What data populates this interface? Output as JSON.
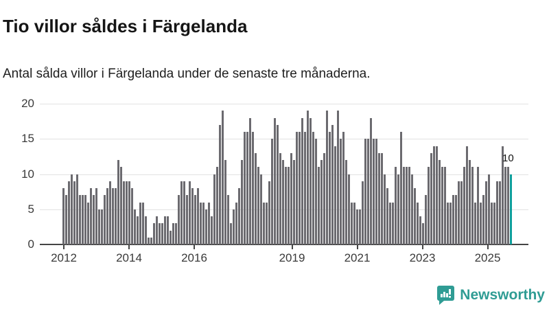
{
  "header": {
    "title": "Tio villor såldes i Färgelanda",
    "subtitle": "Antal sålda villor i Färgelanda under de senaste tre månaderna."
  },
  "chart_data": {
    "type": "bar",
    "title": "Tio villor såldes i Färgelanda",
    "subtitle": "Antal sålda villor i Färgelanda under de senaste tre månaderna.",
    "x_unit": "month",
    "x_start": "2012-01",
    "x_end": "2025-08",
    "values": [
      8,
      7,
      9,
      10,
      9,
      10,
      7,
      7,
      7,
      6,
      8,
      7,
      8,
      5,
      5,
      7,
      8,
      9,
      8,
      8,
      12,
      11,
      9,
      9,
      9,
      8,
      5,
      4,
      6,
      6,
      4,
      1,
      1,
      3,
      4,
      3,
      3,
      4,
      4,
      2,
      3,
      3,
      7,
      9,
      9,
      7,
      9,
      8,
      7,
      8,
      6,
      6,
      5,
      6,
      4,
      10,
      11,
      17,
      19,
      12,
      7,
      3,
      5,
      6,
      8,
      12,
      16,
      16,
      18,
      16,
      13,
      11,
      10,
      6,
      6,
      9,
      15,
      18,
      17,
      13,
      12,
      11,
      11,
      13,
      12,
      16,
      16,
      18,
      16,
      19,
      18,
      16,
      15,
      11,
      12,
      13,
      19,
      16,
      17,
      14,
      19,
      15,
      16,
      12,
      10,
      6,
      6,
      5,
      5,
      9,
      15,
      15,
      18,
      15,
      15,
      13,
      13,
      10,
      8,
      6,
      6,
      11,
      10,
      16,
      11,
      11,
      11,
      10,
      8,
      6,
      4,
      3,
      7,
      11,
      13,
      14,
      14,
      12,
      11,
      11,
      6,
      6,
      7,
      7,
      9,
      9,
      11,
      14,
      12,
      11,
      6,
      11,
      6,
      7,
      9,
      10,
      6,
      6,
      9,
      9,
      14,
      11,
      11,
      10
    ],
    "highlight": {
      "index": 163,
      "value": 10,
      "label": "10",
      "color": "#0d9e9b"
    },
    "bar_color": "#6b6a6f",
    "ylim": [
      0,
      20
    ],
    "yticks": [
      0,
      5,
      10,
      15,
      20
    ],
    "xticks": [
      2012,
      2014,
      2016,
      2019,
      2021,
      2023,
      2025
    ],
    "grid": true,
    "legend": "none"
  },
  "footer": {
    "brand": "Newsworthy",
    "brand_color": "#2f9c94",
    "logo_icon": "bar-chart-speech-bubble"
  }
}
